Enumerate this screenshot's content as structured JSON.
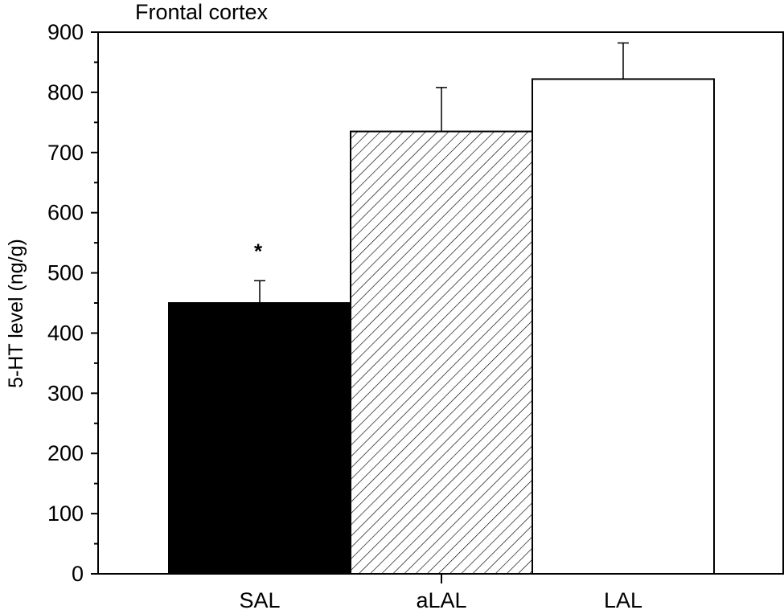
{
  "chart_data": {
    "type": "bar",
    "title": "Frontal cortex",
    "xlabel": "",
    "ylabel": "5-HT level (ng/g)",
    "ylim": [
      0,
      900
    ],
    "yticks": [
      0,
      100,
      200,
      300,
      400,
      500,
      600,
      700,
      800,
      900
    ],
    "categories": [
      "SAL",
      "aLAL",
      "LAL"
    ],
    "values": [
      450,
      735,
      822
    ],
    "errors": [
      37,
      73,
      60
    ],
    "fills": [
      "solid-black",
      "hatched",
      "white"
    ],
    "annotations": [
      {
        "category": "SAL",
        "text": "*"
      }
    ],
    "grid": false,
    "legend": "none"
  }
}
